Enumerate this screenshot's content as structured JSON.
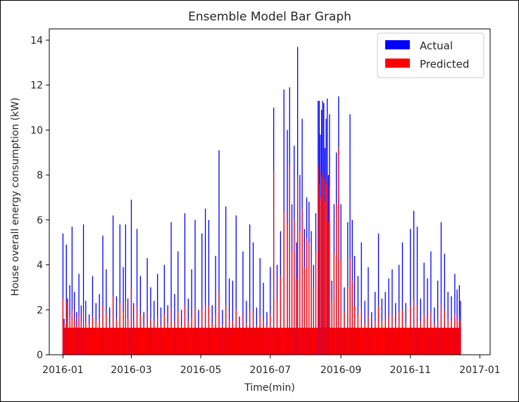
{
  "chart_data": {
    "type": "bar",
    "title": "Ensemble Model Bar Graph",
    "xlabel": "Time(min)",
    "ylabel": "House overall energy consumption (kW)",
    "xlim": [
      "2015-12-20",
      "2017-01-10"
    ],
    "ylim": [
      0,
      14.5
    ],
    "y_ticks": [
      0,
      2,
      4,
      6,
      8,
      10,
      12,
      14
    ],
    "x_ticks": [
      "2016-01",
      "2016-03",
      "2016-05",
      "2016-07",
      "2016-09",
      "2016-11",
      "2017-01"
    ],
    "grid": false,
    "legend_position": "top-right",
    "series": [
      {
        "name": "Actual",
        "color": "#0000ff",
        "points": [
          [
            "2016-01-01",
            5.4
          ],
          [
            "2016-01-02",
            1.6
          ],
          [
            "2016-01-04",
            4.9
          ],
          [
            "2016-01-05",
            2.5
          ],
          [
            "2016-01-07",
            3.1
          ],
          [
            "2016-01-09",
            5.7
          ],
          [
            "2016-01-11",
            2.8
          ],
          [
            "2016-01-13",
            1.9
          ],
          [
            "2016-01-15",
            3.6
          ],
          [
            "2016-01-17",
            2.2
          ],
          [
            "2016-01-19",
            5.8
          ],
          [
            "2016-01-21",
            2.4
          ],
          [
            "2016-01-24",
            1.8
          ],
          [
            "2016-01-27",
            3.5
          ],
          [
            "2016-01-30",
            2.3
          ],
          [
            "2016-02-02",
            2.7
          ],
          [
            "2016-02-05",
            5.3
          ],
          [
            "2016-02-08",
            3.8
          ],
          [
            "2016-02-11",
            2.1
          ],
          [
            "2016-02-14",
            6.2
          ],
          [
            "2016-02-17",
            2.6
          ],
          [
            "2016-02-20",
            5.8
          ],
          [
            "2016-02-23",
            3.9
          ],
          [
            "2016-02-25",
            5.8
          ],
          [
            "2016-02-27",
            2.5
          ],
          [
            "2016-03-01",
            6.9
          ],
          [
            "2016-03-03",
            2.3
          ],
          [
            "2016-03-06",
            5.6
          ],
          [
            "2016-03-09",
            3.5
          ],
          [
            "2016-03-12",
            1.9
          ],
          [
            "2016-03-15",
            4.3
          ],
          [
            "2016-03-18",
            3.0
          ],
          [
            "2016-03-21",
            2.4
          ],
          [
            "2016-03-24",
            3.6
          ],
          [
            "2016-03-27",
            2.1
          ],
          [
            "2016-03-30",
            4.0
          ],
          [
            "2016-04-02",
            2.2
          ],
          [
            "2016-04-05",
            5.9
          ],
          [
            "2016-04-08",
            2.7
          ],
          [
            "2016-04-11",
            4.6
          ],
          [
            "2016-04-14",
            2.0
          ],
          [
            "2016-04-17",
            6.3
          ],
          [
            "2016-04-20",
            2.5
          ],
          [
            "2016-04-23",
            3.8
          ],
          [
            "2016-04-26",
            6.0
          ],
          [
            "2016-04-29",
            2.0
          ],
          [
            "2016-05-02",
            5.4
          ],
          [
            "2016-05-05",
            6.5
          ],
          [
            "2016-05-08",
            6.0
          ],
          [
            "2016-05-11",
            2.2
          ],
          [
            "2016-05-14",
            4.4
          ],
          [
            "2016-05-17",
            9.1
          ],
          [
            "2016-05-20",
            2.0
          ],
          [
            "2016-05-23",
            6.6
          ],
          [
            "2016-05-26",
            3.4
          ],
          [
            "2016-05-29",
            3.3
          ],
          [
            "2016-06-01",
            6.2
          ],
          [
            "2016-06-04",
            1.7
          ],
          [
            "2016-06-07",
            4.6
          ],
          [
            "2016-06-10",
            2.4
          ],
          [
            "2016-06-13",
            5.8
          ],
          [
            "2016-06-16",
            5.0
          ],
          [
            "2016-06-19",
            2.1
          ],
          [
            "2016-06-22",
            4.3
          ],
          [
            "2016-06-25",
            3.2
          ],
          [
            "2016-06-28",
            1.9
          ],
          [
            "2016-07-01",
            3.9
          ],
          [
            "2016-07-04",
            11.0
          ],
          [
            "2016-07-07",
            4.0
          ],
          [
            "2016-07-10",
            5.5
          ],
          [
            "2016-07-13",
            11.8
          ],
          [
            "2016-07-16",
            10.0
          ],
          [
            "2016-07-18",
            11.9
          ],
          [
            "2016-07-20",
            6.7
          ],
          [
            "2016-07-22",
            9.3
          ],
          [
            "2016-07-24",
            5.0
          ],
          [
            "2016-07-25",
            13.7
          ],
          [
            "2016-07-27",
            8.0
          ],
          [
            "2016-07-29",
            10.5
          ],
          [
            "2016-07-31",
            5.6
          ],
          [
            "2016-08-02",
            7.0
          ],
          [
            "2016-08-04",
            6.8
          ],
          [
            "2016-08-06",
            5.5
          ],
          [
            "2016-08-08",
            4.0
          ],
          [
            "2016-08-10",
            6.3
          ],
          [
            "2016-08-12",
            11.3
          ],
          [
            "2016-08-13",
            11.3
          ],
          [
            "2016-08-14",
            9.8
          ],
          [
            "2016-08-15",
            10.9
          ],
          [
            "2016-08-16",
            11.3
          ],
          [
            "2016-08-17",
            11.2
          ],
          [
            "2016-08-18",
            9.2
          ],
          [
            "2016-08-19",
            10.5
          ],
          [
            "2016-08-20",
            11.4
          ],
          [
            "2016-08-21",
            8.0
          ],
          [
            "2016-08-22",
            10.7
          ],
          [
            "2016-08-24",
            3.3
          ],
          [
            "2016-08-26",
            6.7
          ],
          [
            "2016-08-28",
            9.0
          ],
          [
            "2016-08-30",
            11.5
          ],
          [
            "2016-09-01",
            6.7
          ],
          [
            "2016-09-04",
            3.0
          ],
          [
            "2016-09-07",
            5.9
          ],
          [
            "2016-09-09",
            10.7
          ],
          [
            "2016-09-11",
            6.0
          ],
          [
            "2016-09-13",
            4.4
          ],
          [
            "2016-09-16",
            3.5
          ],
          [
            "2016-09-19",
            5.0
          ],
          [
            "2016-09-22",
            2.4
          ],
          [
            "2016-09-25",
            3.9
          ],
          [
            "2016-09-28",
            1.9
          ],
          [
            "2016-10-01",
            2.8
          ],
          [
            "2016-10-04",
            5.4
          ],
          [
            "2016-10-07",
            2.5
          ],
          [
            "2016-10-10",
            2.8
          ],
          [
            "2016-10-13",
            3.4
          ],
          [
            "2016-10-16",
            3.8
          ],
          [
            "2016-10-19",
            2.3
          ],
          [
            "2016-10-22",
            4.0
          ],
          [
            "2016-10-25",
            5.0
          ],
          [
            "2016-10-28",
            2.3
          ],
          [
            "2016-11-01",
            5.6
          ],
          [
            "2016-11-04",
            6.4
          ],
          [
            "2016-11-07",
            5.7
          ],
          [
            "2016-11-10",
            2.5
          ],
          [
            "2016-11-13",
            4.1
          ],
          [
            "2016-11-16",
            3.4
          ],
          [
            "2016-11-19",
            4.6
          ],
          [
            "2016-11-22",
            2.1
          ],
          [
            "2016-11-25",
            3.3
          ],
          [
            "2016-11-28",
            5.9
          ],
          [
            "2016-12-01",
            4.5
          ],
          [
            "2016-12-04",
            2.8
          ],
          [
            "2016-12-07",
            2.6
          ],
          [
            "2016-12-10",
            3.6
          ],
          [
            "2016-12-12",
            2.9
          ],
          [
            "2016-12-14",
            3.1
          ],
          [
            "2016-12-15",
            2.4
          ]
        ]
      },
      {
        "name": "Predicted",
        "color": "#ff0000",
        "points": [
          [
            "2016-01-01",
            2.5
          ],
          [
            "2016-01-02",
            1.4
          ],
          [
            "2016-01-04",
            2.4
          ],
          [
            "2016-01-05",
            1.5
          ],
          [
            "2016-01-07",
            1.7
          ],
          [
            "2016-01-09",
            2.0
          ],
          [
            "2016-01-11",
            1.6
          ],
          [
            "2016-01-13",
            1.3
          ],
          [
            "2016-01-15",
            1.8
          ],
          [
            "2016-01-17",
            1.5
          ],
          [
            "2016-01-19",
            1.9
          ],
          [
            "2016-01-21",
            1.5
          ],
          [
            "2016-01-24",
            1.4
          ],
          [
            "2016-01-27",
            1.7
          ],
          [
            "2016-01-30",
            1.5
          ],
          [
            "2016-02-02",
            1.6
          ],
          [
            "2016-02-05",
            2.2
          ],
          [
            "2016-02-08",
            1.8
          ],
          [
            "2016-02-11",
            1.4
          ],
          [
            "2016-02-14",
            2.6
          ],
          [
            "2016-02-17",
            1.6
          ],
          [
            "2016-02-20",
            2.3
          ],
          [
            "2016-02-23",
            1.9
          ],
          [
            "2016-02-25",
            2.4
          ],
          [
            "2016-02-27",
            1.6
          ],
          [
            "2016-03-01",
            3.0
          ],
          [
            "2016-03-03",
            1.5
          ],
          [
            "2016-03-06",
            2.2
          ],
          [
            "2016-03-09",
            1.8
          ],
          [
            "2016-03-12",
            1.3
          ],
          [
            "2016-03-15",
            1.9
          ],
          [
            "2016-03-18",
            1.6
          ],
          [
            "2016-03-21",
            1.5
          ],
          [
            "2016-03-24",
            1.7
          ],
          [
            "2016-03-27",
            1.3
          ],
          [
            "2016-03-30",
            1.8
          ],
          [
            "2016-04-02",
            1.4
          ],
          [
            "2016-04-05",
            2.1
          ],
          [
            "2016-04-08",
            1.5
          ],
          [
            "2016-04-11",
            1.9
          ],
          [
            "2016-04-14",
            1.3
          ],
          [
            "2016-04-17",
            2.2
          ],
          [
            "2016-04-20",
            1.5
          ],
          [
            "2016-04-23",
            1.7
          ],
          [
            "2016-04-26",
            2.1
          ],
          [
            "2016-04-29",
            1.3
          ],
          [
            "2016-05-02",
            2.0
          ],
          [
            "2016-05-05",
            2.3
          ],
          [
            "2016-05-08",
            2.2
          ],
          [
            "2016-05-11",
            1.4
          ],
          [
            "2016-05-14",
            1.8
          ],
          [
            "2016-05-17",
            2.8
          ],
          [
            "2016-05-20",
            1.3
          ],
          [
            "2016-05-23",
            2.2
          ],
          [
            "2016-05-26",
            1.6
          ],
          [
            "2016-05-29",
            1.5
          ],
          [
            "2016-06-01",
            2.0
          ],
          [
            "2016-06-04",
            1.2
          ],
          [
            "2016-06-07",
            1.8
          ],
          [
            "2016-06-10",
            1.4
          ],
          [
            "2016-06-13",
            2.0
          ],
          [
            "2016-06-16",
            1.9
          ],
          [
            "2016-06-19",
            1.3
          ],
          [
            "2016-06-22",
            1.7
          ],
          [
            "2016-06-25",
            1.5
          ],
          [
            "2016-06-28",
            1.3
          ],
          [
            "2016-07-01",
            1.8
          ],
          [
            "2016-07-04",
            8.2
          ],
          [
            "2016-07-07",
            2.5
          ],
          [
            "2016-07-10",
            3.5
          ],
          [
            "2016-07-13",
            6.4
          ],
          [
            "2016-07-16",
            5.8
          ],
          [
            "2016-07-18",
            8.4
          ],
          [
            "2016-07-20",
            4.6
          ],
          [
            "2016-07-22",
            6.0
          ],
          [
            "2016-07-24",
            3.4
          ],
          [
            "2016-07-25",
            7.9
          ],
          [
            "2016-07-27",
            5.5
          ],
          [
            "2016-07-29",
            6.5
          ],
          [
            "2016-07-31",
            3.9
          ],
          [
            "2016-08-02",
            5.2
          ],
          [
            "2016-08-04",
            5.0
          ],
          [
            "2016-08-06",
            4.0
          ],
          [
            "2016-08-08",
            3.0
          ],
          [
            "2016-08-10",
            4.6
          ],
          [
            "2016-08-12",
            8.4
          ],
          [
            "2016-08-13",
            7.6
          ],
          [
            "2016-08-14",
            7.0
          ],
          [
            "2016-08-15",
            7.9
          ],
          [
            "2016-08-16",
            8.1
          ],
          [
            "2016-08-17",
            7.8
          ],
          [
            "2016-08-18",
            6.8
          ],
          [
            "2016-08-19",
            7.6
          ],
          [
            "2016-08-20",
            8.0
          ],
          [
            "2016-08-21",
            5.9
          ],
          [
            "2016-08-22",
            7.5
          ],
          [
            "2016-08-24",
            2.4
          ],
          [
            "2016-08-26",
            4.5
          ],
          [
            "2016-08-28",
            6.7
          ],
          [
            "2016-08-30",
            9.2
          ],
          [
            "2016-09-01",
            4.2
          ],
          [
            "2016-09-04",
            1.9
          ],
          [
            "2016-09-07",
            3.0
          ],
          [
            "2016-09-09",
            4.3
          ],
          [
            "2016-09-11",
            3.3
          ],
          [
            "2016-09-13",
            2.2
          ],
          [
            "2016-09-16",
            1.8
          ],
          [
            "2016-09-19",
            2.1
          ],
          [
            "2016-09-22",
            1.4
          ],
          [
            "2016-09-25",
            1.7
          ],
          [
            "2016-09-28",
            1.2
          ],
          [
            "2016-10-01",
            1.5
          ],
          [
            "2016-10-04",
            2.2
          ],
          [
            "2016-10-07",
            1.5
          ],
          [
            "2016-10-10",
            1.6
          ],
          [
            "2016-10-13",
            1.7
          ],
          [
            "2016-10-16",
            1.8
          ],
          [
            "2016-10-19",
            1.4
          ],
          [
            "2016-10-22",
            1.9
          ],
          [
            "2016-10-25",
            2.0
          ],
          [
            "2016-10-28",
            1.4
          ],
          [
            "2016-11-01",
            2.2
          ],
          [
            "2016-11-04",
            2.4
          ],
          [
            "2016-11-07",
            2.2
          ],
          [
            "2016-11-10",
            1.5
          ],
          [
            "2016-11-13",
            1.8
          ],
          [
            "2016-11-16",
            1.6
          ],
          [
            "2016-11-19",
            1.9
          ],
          [
            "2016-11-22",
            1.4
          ],
          [
            "2016-11-25",
            1.6
          ],
          [
            "2016-11-28",
            2.3
          ],
          [
            "2016-12-01",
            2.0
          ],
          [
            "2016-12-04",
            1.6
          ],
          [
            "2016-12-07",
            1.5
          ],
          [
            "2016-12-10",
            1.8
          ],
          [
            "2016-12-12",
            1.6
          ],
          [
            "2016-12-14",
            1.7
          ],
          [
            "2016-12-15",
            1.5
          ]
        ]
      }
    ]
  }
}
